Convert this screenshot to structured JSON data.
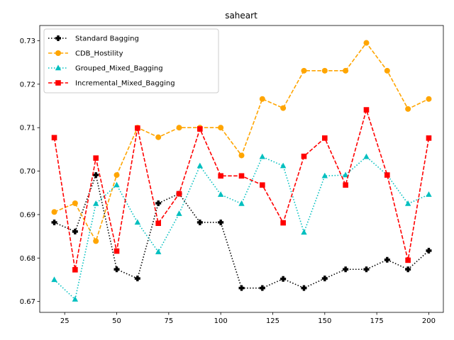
{
  "chart_data": {
    "type": "line",
    "title": "saheart",
    "xlabel": "",
    "ylabel": "",
    "x": [
      20,
      30,
      40,
      50,
      60,
      70,
      80,
      90,
      100,
      110,
      120,
      130,
      140,
      150,
      160,
      170,
      180,
      190,
      200
    ],
    "xlim": [
      13,
      207
    ],
    "ylim": [
      0.6675,
      0.7335
    ],
    "xticks": [
      25,
      50,
      75,
      100,
      125,
      150,
      175,
      200
    ],
    "yticks": [
      0.67,
      0.68,
      0.69,
      0.7,
      0.71,
      0.72,
      0.73
    ],
    "grid": false,
    "legend_position": "top-left",
    "series": [
      {
        "name": "Standard Bagging",
        "color": "#000000",
        "marker": "plus",
        "linestyle": "dotted",
        "values": [
          0.6882,
          0.6861,
          0.6991,
          0.6774,
          0.6753,
          0.6926,
          0.6948,
          0.6882,
          0.6882,
          0.6731,
          0.6731,
          0.6752,
          0.6731,
          0.6753,
          0.6774,
          0.6774,
          0.6796,
          0.6774,
          0.6817
        ]
      },
      {
        "name": "CDB_Hostility",
        "color": "#ffa500",
        "marker": "circle",
        "linestyle": "dashed",
        "values": [
          0.6906,
          0.6926,
          0.6839,
          0.6991,
          0.71,
          0.7078,
          0.71,
          0.71,
          0.71,
          0.7036,
          0.7166,
          0.7145,
          0.7231,
          0.7231,
          0.7231,
          0.7295,
          0.7231,
          0.7143,
          0.7166
        ]
      },
      {
        "name": "Grouped_Mixed_Bagging",
        "color": "#00bfbf",
        "marker": "triangle",
        "linestyle": "dotted",
        "values": [
          0.675,
          0.6705,
          0.6925,
          0.6968,
          0.6882,
          0.6814,
          0.6902,
          0.7012,
          0.6946,
          0.6925,
          0.7033,
          0.7012,
          0.6859,
          0.6989,
          0.6991,
          0.7033,
          0.6991,
          0.6925,
          0.6946
        ]
      },
      {
        "name": "Incremental_Mixed_Bagging",
        "color": "#ff0000",
        "marker": "square",
        "linestyle": "dashed",
        "values": [
          0.7077,
          0.6773,
          0.703,
          0.6816,
          0.7099,
          0.688,
          0.6948,
          0.7097,
          0.6989,
          0.6989,
          0.6968,
          0.6881,
          0.7034,
          0.7076,
          0.6968,
          0.7141,
          0.6991,
          0.6795,
          0.7076
        ]
      }
    ]
  }
}
